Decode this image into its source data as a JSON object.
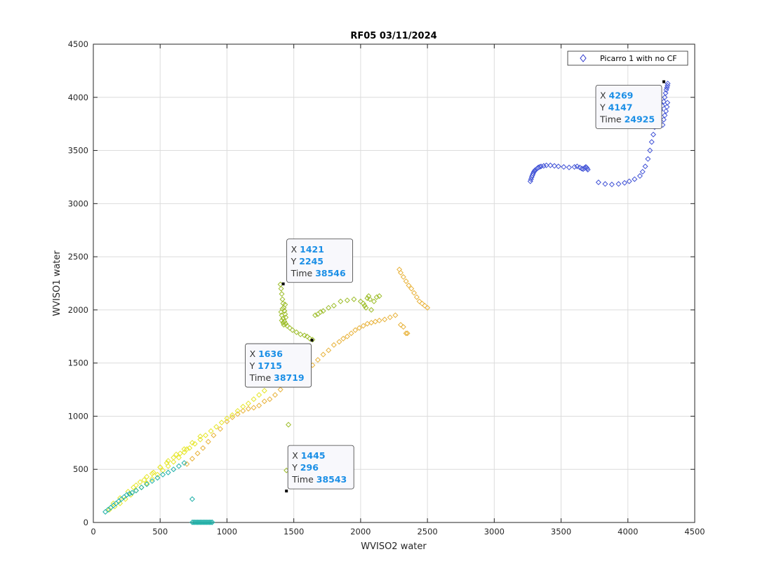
{
  "chart_data": {
    "type": "scatter",
    "title": "RF05 03/11/2024",
    "xlabel": "WVISO2 water",
    "ylabel": "WVISO1 water",
    "xlim": [
      0,
      4500
    ],
    "ylim": [
      0,
      4500
    ],
    "xticks": [
      "0",
      "500",
      "1000",
      "1500",
      "2000",
      "2500",
      "3000",
      "3500",
      "4000",
      "4500"
    ],
    "yticks": [
      "0",
      "500",
      "1000",
      "1500",
      "2000",
      "2500",
      "3000",
      "3500",
      "4000",
      "4500"
    ],
    "grid": true,
    "legend": {
      "placement": "top-right",
      "entries": [
        "Picarro 1 with no CF"
      ]
    },
    "marker": "diamond",
    "series_colors": {
      "blue": "#4052d6",
      "green": "#9dbd2a",
      "yellow_orange": "#e8b23a",
      "yellow": "#e6e628",
      "teal": "#1fb0a8"
    },
    "series": [
      {
        "color_key": "blue",
        "x": [
          3780,
          3830,
          3880,
          3930,
          3975,
          4010,
          4050,
          4090,
          4110,
          4130,
          4150,
          4165,
          4178,
          4190,
          4200,
          4215,
          4230,
          4245,
          4258,
          4268,
          4276,
          4282,
          4287,
          4292,
          4296,
          4298,
          4296,
          4292,
          4285,
          4276,
          4268,
          4260,
          3270,
          3275,
          3280,
          3285,
          3290,
          3295,
          3300,
          3305,
          3312,
          3320,
          3330,
          3340,
          3350,
          3370,
          3390,
          3420,
          3450,
          3480,
          3520,
          3560,
          3600,
          3620,
          3640,
          3655,
          3665,
          3675,
          3685,
          3690,
          3695,
          3700
        ],
        "y": [
          3200,
          3185,
          3180,
          3185,
          3195,
          3210,
          3230,
          3260,
          3300,
          3350,
          3420,
          3500,
          3580,
          3650,
          3720,
          3780,
          3830,
          3880,
          3920,
          3960,
          4000,
          4040,
          4070,
          4090,
          4110,
          4130,
          3950,
          3910,
          3870,
          3830,
          3790,
          3740,
          3210,
          3230,
          3250,
          3265,
          3280,
          3295,
          3305,
          3315,
          3320,
          3330,
          3340,
          3345,
          3350,
          3355,
          3360,
          3360,
          3355,
          3350,
          3345,
          3340,
          3345,
          3350,
          3340,
          3330,
          3325,
          3335,
          3345,
          3340,
          3330,
          3320
        ]
      },
      {
        "color_key": "green",
        "x": [
          1400,
          1405,
          1410,
          1415,
          1420,
          1425,
          1430,
          1435,
          1440,
          1410,
          1420,
          1425,
          1430,
          1435,
          1415,
          1405,
          1410,
          1420,
          1430,
          1440,
          1450,
          1470,
          1490,
          1520,
          1550,
          1580,
          1600,
          1620,
          1640,
          1660,
          1680,
          1700,
          1720,
          1760,
          1800,
          1850,
          1900,
          1950,
          2000,
          2020,
          2030,
          2040,
          2050,
          2060,
          2070,
          2080,
          2100,
          2120,
          2140,
          1460,
          1445
        ],
        "y": [
          2240,
          2200,
          2150,
          2100,
          2060,
          2020,
          1990,
          1960,
          1930,
          1900,
          1880,
          1860,
          1990,
          2050,
          2010,
          1980,
          1950,
          1920,
          1890,
          1870,
          1850,
          1830,
          1810,
          1790,
          1770,
          1760,
          1750,
          1730,
          1720,
          1950,
          1960,
          1980,
          1990,
          2020,
          2040,
          2080,
          2090,
          2100,
          2080,
          2060,
          2040,
          2020,
          2110,
          2130,
          2100,
          2000,
          2080,
          2120,
          2130,
          920,
          490
        ]
      },
      {
        "color_key": "yellow_orange",
        "x": [
          700,
          740,
          780,
          820,
          860,
          900,
          950,
          1000,
          1040,
          1080,
          1120,
          1160,
          1200,
          1240,
          1280,
          1320,
          1360,
          1400,
          1440,
          1480,
          1520,
          1560,
          1600,
          1640,
          1680,
          1720,
          1760,
          1800,
          1840,
          1870,
          1900,
          1930,
          1960,
          1990,
          2020,
          2050,
          2080,
          2110,
          2140,
          2180,
          2220,
          2260,
          2290,
          2300,
          2320,
          2340,
          2360,
          2380,
          2400,
          2420,
          2440,
          2460,
          2480,
          2500,
          2340,
          2350,
          2300,
          2320
        ],
        "y": [
          550,
          600,
          650,
          700,
          760,
          820,
          880,
          950,
          990,
          1020,
          1050,
          1070,
          1080,
          1100,
          1140,
          1160,
          1200,
          1250,
          1300,
          1350,
          1400,
          1440,
          1460,
          1480,
          1530,
          1580,
          1620,
          1670,
          1700,
          1730,
          1750,
          1780,
          1810,
          1830,
          1850,
          1870,
          1880,
          1890,
          1900,
          1910,
          1930,
          1950,
          2380,
          2350,
          2310,
          2270,
          2230,
          2200,
          2160,
          2120,
          2080,
          2060,
          2040,
          2020,
          1780,
          1780,
          1860,
          1840
        ]
      },
      {
        "color_key": "yellow",
        "x": [
          120,
          160,
          200,
          240,
          280,
          320,
          360,
          400,
          440,
          480,
          520,
          560,
          600,
          640,
          680,
          720,
          760,
          800,
          840,
          880,
          920,
          960,
          1000,
          1040,
          1080,
          1120,
          1160,
          1200,
          1240,
          1280,
          150,
          200,
          260,
          320,
          380,
          440,
          500,
          560,
          620,
          680,
          740,
          800,
          300,
          350,
          400,
          450,
          500,
          550,
          600,
          650,
          700
        ],
        "y": [
          120,
          150,
          180,
          220,
          260,
          300,
          330,
          370,
          410,
          450,
          490,
          530,
          570,
          610,
          660,
          700,
          740,
          780,
          820,
          860,
          900,
          940,
          980,
          1010,
          1050,
          1090,
          1120,
          1160,
          1200,
          1240,
          180,
          230,
          290,
          350,
          400,
          460,
          520,
          580,
          640,
          690,
          750,
          810,
          330,
          380,
          430,
          470,
          520,
          560,
          610,
          650,
          690
        ]
      },
      {
        "color_key": "teal",
        "x": [
          90,
          110,
          130,
          150,
          170,
          190,
          210,
          230,
          250,
          270,
          290,
          320,
          360,
          400,
          440,
          480,
          520,
          560,
          600,
          640,
          680,
          740,
          750,
          760,
          770,
          780,
          790,
          800,
          810,
          820,
          830,
          840,
          850,
          860,
          870,
          880,
          890,
          740
        ],
        "y": [
          100,
          120,
          140,
          160,
          180,
          200,
          220,
          240,
          260,
          270,
          280,
          300,
          330,
          360,
          390,
          420,
          450,
          470,
          500,
          530,
          560,
          2,
          2,
          2,
          2,
          2,
          2,
          2,
          2,
          2,
          2,
          2,
          2,
          2,
          2,
          2,
          2,
          220
        ]
      }
    ],
    "datatips": [
      {
        "x": 1421,
        "y": 2245,
        "time": 38546,
        "x_label": "X",
        "y_label": "Y",
        "time_label": "Time"
      },
      {
        "x": 1636,
        "y": 1715,
        "time": 38719,
        "x_label": "X",
        "y_label": "Y",
        "time_label": "Time"
      },
      {
        "x": 1445,
        "y": 296,
        "time": 38543,
        "x_label": "X",
        "y_label": "Y",
        "time_label": "Time"
      },
      {
        "x": 4269,
        "y": 4147,
        "time": 24925,
        "x_label": "X",
        "y_label": "Y",
        "time_label": "Time"
      }
    ]
  }
}
